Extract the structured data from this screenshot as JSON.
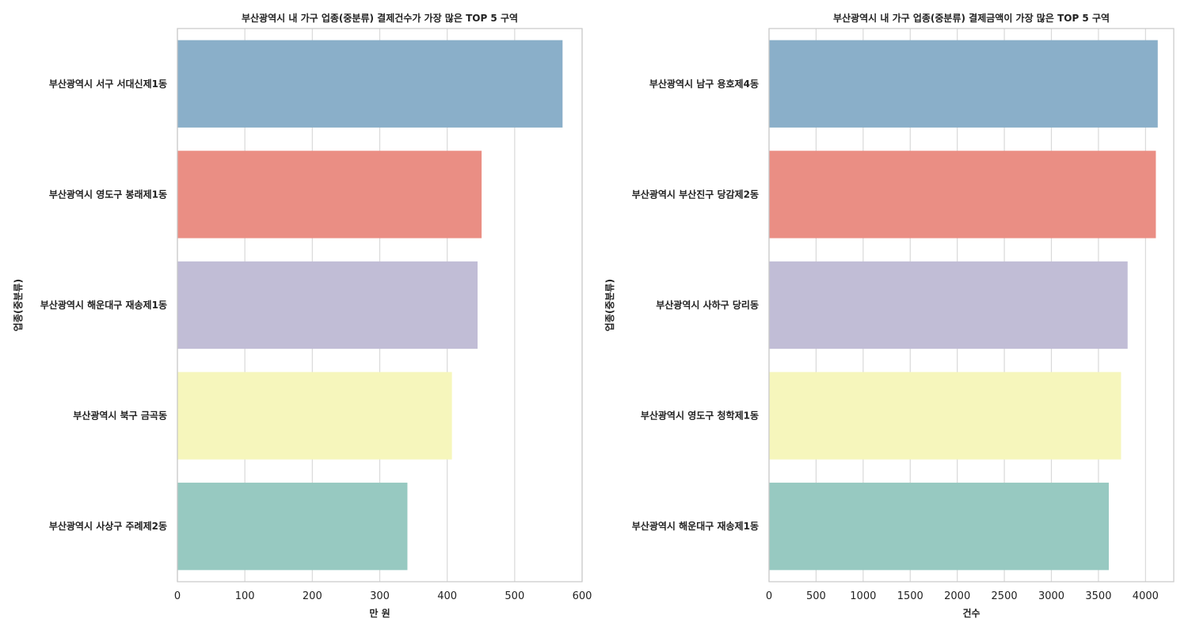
{
  "chart_data": [
    {
      "type": "bar",
      "orientation": "horizontal",
      "title": "부산광역시 내 가구 업종(중분류) 결제건수가 가장 많은 TOP 5 구역",
      "xlabel": "만 원",
      "ylabel": "업종(중분류)",
      "xlim": [
        0,
        600
      ],
      "xticks": [
        0,
        100,
        200,
        300,
        400,
        500,
        600
      ],
      "grid": true,
      "categories": [
        "부산광역시 서구 서대신제1동",
        "부산광역시 영도구 봉래제1동",
        "부산광역시 해운대구 재송제1동",
        "부산광역시 북구 금곡동",
        "부산광역시 사상구 주례제2동"
      ],
      "values": [
        571,
        451,
        445,
        407,
        341
      ],
      "colors": [
        "#8aafc9",
        "#ea8e84",
        "#c1bdd6",
        "#f6f6bc",
        "#97c9c1"
      ]
    },
    {
      "type": "bar",
      "orientation": "horizontal",
      "title": "부산광역시 내 가구 업종(중분류) 결제금액이 가장 많은 TOP 5 구역",
      "xlabel": "건수",
      "ylabel": "업종(중분류)",
      "xlim": [
        0,
        4300
      ],
      "xticks": [
        0,
        500,
        1000,
        1500,
        2000,
        2500,
        3000,
        3500,
        4000
      ],
      "grid": true,
      "categories": [
        "부산광역시 남구 용호제4동",
        "부산광역시 부산진구 당감제2동",
        "부산광역시 사하구 당리동",
        "부산광역시 영도구 청학제1동",
        "부산광역시 해운대구 재송제1동"
      ],
      "values": [
        4130,
        4110,
        3810,
        3740,
        3610
      ],
      "colors": [
        "#8aafc9",
        "#ea8e84",
        "#c1bdd6",
        "#f6f6bc",
        "#97c9c1"
      ]
    }
  ]
}
